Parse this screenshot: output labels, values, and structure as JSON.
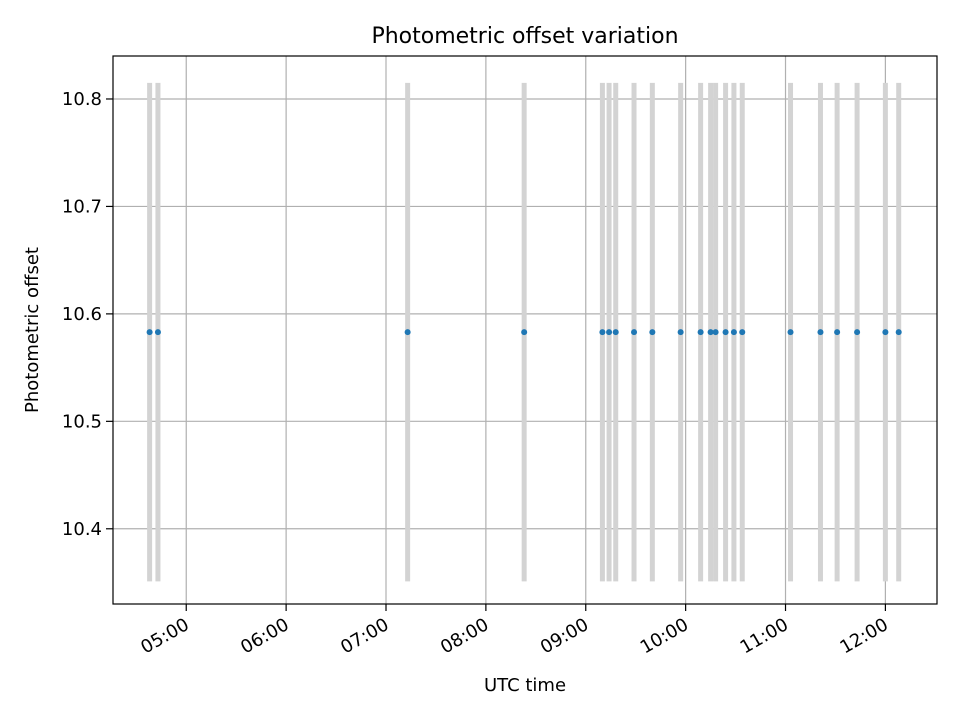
{
  "chart_data": {
    "type": "scatter",
    "title": "Photometric offset variation",
    "xlabel": "UTC time",
    "ylabel": "Photometric offset",
    "x_ticks": [
      "05:00",
      "06:00",
      "07:00",
      "08:00",
      "09:00",
      "10:00",
      "11:00",
      "12:00"
    ],
    "y_ticks": [
      10.4,
      10.5,
      10.6,
      10.7,
      10.8
    ],
    "xlim": [
      "04:16",
      "12:31"
    ],
    "ylim": [
      10.33,
      10.84
    ],
    "grid": true,
    "y_error": 0.232,
    "series": [
      {
        "color": "#1f77b4",
        "error_color": "#d3d3d3",
        "points": [
          {
            "x": "04:38",
            "y": 10.583
          },
          {
            "x": "04:43",
            "y": 10.583
          },
          {
            "x": "07:13",
            "y": 10.583
          },
          {
            "x": "08:23",
            "y": 10.583
          },
          {
            "x": "09:10",
            "y": 10.583
          },
          {
            "x": "09:14",
            "y": 10.583
          },
          {
            "x": "09:18",
            "y": 10.583
          },
          {
            "x": "09:29",
            "y": 10.583
          },
          {
            "x": "09:40",
            "y": 10.583
          },
          {
            "x": "09:57",
            "y": 10.583
          },
          {
            "x": "10:09",
            "y": 10.583
          },
          {
            "x": "10:15",
            "y": 10.583
          },
          {
            "x": "10:18",
            "y": 10.583
          },
          {
            "x": "10:24",
            "y": 10.583
          },
          {
            "x": "10:29",
            "y": 10.583
          },
          {
            "x": "10:34",
            "y": 10.583
          },
          {
            "x": "11:03",
            "y": 10.583
          },
          {
            "x": "11:21",
            "y": 10.583
          },
          {
            "x": "11:31",
            "y": 10.583
          },
          {
            "x": "11:43",
            "y": 10.583
          },
          {
            "x": "12:00",
            "y": 10.583
          },
          {
            "x": "12:08",
            "y": 10.583
          }
        ]
      }
    ]
  }
}
